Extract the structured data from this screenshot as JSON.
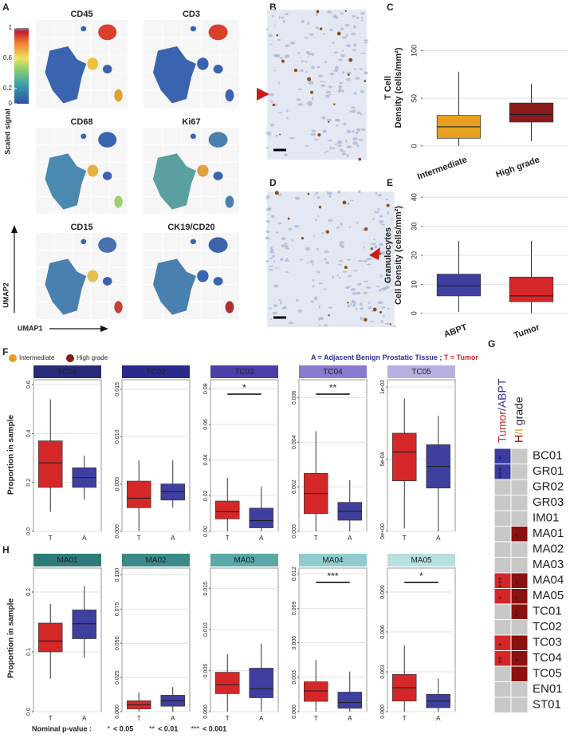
{
  "panel_labels": [
    "A",
    "B",
    "C",
    "D",
    "E",
    "F",
    "G",
    "H"
  ],
  "umap": {
    "markers": [
      "CD45",
      "CD3",
      "CD68",
      "Ki67",
      "CD15",
      "CK19/CD20"
    ],
    "colorbar_title": "Scaled  signal",
    "colorbar_ticks": [
      1,
      0.6,
      0.2,
      0
    ],
    "x_axis": "UMAP1",
    "y_axis": "UMAP2"
  },
  "legend": [
    {
      "name": "Intermediate",
      "color": "#e8a020"
    },
    {
      "name": "High grade",
      "color": "#8b1a1a"
    }
  ],
  "note": [
    {
      "text": "A = Adjacent Benign Prostatic Tissue",
      "color": "#2f2f8f"
    },
    {
      "text": " ; ",
      "color": "#222222"
    },
    {
      "text": "T = Tumor",
      "color": "#d62728"
    }
  ],
  "proportion_label": "Proportion in sample",
  "pvalue_legend": {
    "title": "Nominal p-value :",
    "items": [
      {
        "stars": "*",
        "label": "< 0.05"
      },
      {
        "stars": "**",
        "label": "< 0.01"
      },
      {
        "stars": "***",
        "label": "< 0.001"
      }
    ]
  },
  "chart_data": [
    {
      "type": "box",
      "ylabel": [
        "T Cell",
        "Density (cells/mm²)"
      ],
      "categories": [
        "Intermediate",
        "High grade"
      ],
      "boxes": [
        {
          "color": "#e8a020",
          "min": 0,
          "q1": 8,
          "median": 20,
          "q3": 32,
          "max": 78
        },
        {
          "color": "#8b1a1a",
          "min": 5,
          "q1": 25,
          "median": 33,
          "q3": 45,
          "max": 65
        }
      ],
      "ylim": [
        -6,
        128
      ],
      "yticks": [
        0,
        50,
        100
      ],
      "grid": true
    },
    {
      "type": "box",
      "ylabel": [
        "Granulocytes",
        "Cell Density (cells/mm²)"
      ],
      "categories": [
        "ABPT",
        "Tumor"
      ],
      "boxes": [
        {
          "color": "#3f3fa0",
          "min": 0.5,
          "q1": 6,
          "median": 9.5,
          "q3": 13.5,
          "max": 25
        },
        {
          "color": "#d62728",
          "min": 0,
          "q1": 4,
          "median": 6,
          "q3": 12.5,
          "max": 25
        }
      ],
      "ylim": [
        -2,
        42
      ],
      "yticks": [
        0,
        10,
        20,
        30,
        40
      ],
      "grid": true
    },
    {
      "type": "box",
      "title": "TC01",
      "strip_color": "#2a2a7a",
      "categories": [
        "T",
        "A"
      ],
      "boxes": [
        {
          "color": "#d62728",
          "min": 0.08,
          "q1": 0.18,
          "median": 0.28,
          "q3": 0.37,
          "max": 0.54
        },
        {
          "color": "#3f3fa0",
          "min": 0.13,
          "q1": 0.18,
          "median": 0.22,
          "q3": 0.26,
          "max": 0.31
        }
      ],
      "ylim": [
        0,
        0.62
      ],
      "yticks": [
        {
          "value": 0,
          "label": "0.0"
        },
        0.2,
        0.4,
        0.6
      ],
      "grid": true
    },
    {
      "type": "box",
      "title": "TC02",
      "strip_color": "#2a2a8a",
      "categories": [
        "T",
        "A"
      ],
      "boxes": [
        {
          "color": "#d62728",
          "min": 0,
          "q1": 0.0025,
          "median": 0.0035,
          "q3": 0.0053,
          "max": 0.0075
        },
        {
          "color": "#3f3fa0",
          "min": 0.0025,
          "q1": 0.0033,
          "median": 0.0042,
          "q3": 0.005,
          "max": 0.0075
        }
      ],
      "ylim": [
        0,
        0.016
      ],
      "yticks": [
        {
          "value": 0,
          "label": "0.000"
        },
        {
          "value": 0.005,
          "label": "0.005"
        },
        {
          "value": 0.01,
          "label": "0.010"
        },
        {
          "value": 0.015,
          "label": "0.015"
        }
      ],
      "grid": true
    },
    {
      "type": "box",
      "title": "TC03",
      "strip_color": "#4a40a8",
      "categories": [
        "T",
        "A"
      ],
      "significance": "*",
      "boxes": [
        {
          "color": "#d62728",
          "min": 0,
          "q1": 0.007,
          "median": 0.011,
          "q3": 0.017,
          "max": 0.03
        },
        {
          "color": "#3f3fa0",
          "min": 0,
          "q1": 0.002,
          "median": 0.006,
          "q3": 0.013,
          "max": 0.025
        }
      ],
      "ylim": [
        0,
        0.085
      ],
      "yticks": [
        {
          "value": 0,
          "label": "0.00"
        },
        {
          "value": 0.02,
          "label": "0.02"
        },
        {
          "value": 0.04,
          "label": "0.04"
        },
        {
          "value": 0.06,
          "label": "0.06"
        },
        {
          "value": 0.08,
          "label": "0.08"
        }
      ],
      "grid": true
    },
    {
      "type": "box",
      "title": "TC04",
      "strip_color": "#8a7ad0",
      "categories": [
        "T",
        "A"
      ],
      "significance": "**",
      "boxes": [
        {
          "color": "#d62728",
          "min": 0,
          "q1": 0.0008,
          "median": 0.0017,
          "q3": 0.0026,
          "max": 0.0045
        },
        {
          "color": "#3f3fa0",
          "min": 0,
          "q1": 0.0005,
          "median": 0.0009,
          "q3": 0.0013,
          "max": 0.0023
        }
      ],
      "ylim": [
        0,
        0.0068
      ],
      "yticks": [
        {
          "value": 0,
          "label": "0.000"
        },
        0.002,
        0.004,
        0.006
      ],
      "grid": true
    },
    {
      "type": "box",
      "title": "TC05",
      "strip_color": "#b8b0e0",
      "categories": [
        "T",
        "A"
      ],
      "boxes": [
        {
          "color": "#d62728",
          "min": 2e-05,
          "q1": 0.00035,
          "median": 0.00055,
          "q3": 0.00068,
          "max": 0.00092
        },
        {
          "color": "#3f3fa0",
          "min": 0,
          "q1": 0.0003,
          "median": 0.00045,
          "q3": 0.0006,
          "max": 0.0008
        }
      ],
      "ylim": [
        0,
        0.00105
      ],
      "yticks": [
        {
          "value": 0,
          "label": "0e+00"
        },
        {
          "value": 0.0005,
          "label": "5e-04"
        },
        {
          "value": 0.001,
          "label": "1e-03"
        }
      ],
      "grid": true
    },
    {
      "type": "box",
      "title": "MA01",
      "strip_color": "#2e7a7a",
      "categories": [
        "T",
        "A"
      ],
      "boxes": [
        {
          "color": "#d62728",
          "min": 0.055,
          "q1": 0.1,
          "median": 0.118,
          "q3": 0.148,
          "max": 0.18
        },
        {
          "color": "#3f3fa0",
          "min": 0.09,
          "q1": 0.122,
          "median": 0.147,
          "q3": 0.17,
          "max": 0.21
        }
      ],
      "ylim": [
        0,
        0.24
      ],
      "yticks": [
        {
          "value": 0,
          "label": "0.0"
        },
        0.1,
        0.2
      ],
      "grid": true
    },
    {
      "type": "box",
      "title": "MA02",
      "strip_color": "#3a8a8a",
      "categories": [
        "T",
        "A"
      ],
      "boxes": [
        {
          "color": "#d62728",
          "min": 0,
          "q1": 0.002,
          "median": 0.005,
          "q3": 0.008,
          "max": 0.014
        },
        {
          "color": "#3f3fa0",
          "min": 0,
          "q1": 0.004,
          "median": 0.008,
          "q3": 0.012,
          "max": 0.018
        }
      ],
      "ylim": [
        0,
        0.105
      ],
      "yticks": [
        {
          "value": 0,
          "label": "0.000"
        },
        0.025,
        {
          "value": 0.05,
          "label": "0.050"
        },
        0.075,
        {
          "value": 0.1,
          "label": "0.100"
        }
      ],
      "grid": true
    },
    {
      "type": "box",
      "title": "MA03",
      "strip_color": "#5aa8a8",
      "categories": [
        "T",
        "A"
      ],
      "boxes": [
        {
          "color": "#d62728",
          "min": 0,
          "q1": 0.0022,
          "median": 0.0033,
          "q3": 0.0048,
          "max": 0.007
        },
        {
          "color": "#3f3fa0",
          "min": 0,
          "q1": 0.0017,
          "median": 0.0028,
          "q3": 0.0053,
          "max": 0.0083
        }
      ],
      "ylim": [
        0,
        0.0175
      ],
      "yticks": [
        {
          "value": 0,
          "label": "0.000"
        },
        0.005,
        {
          "value": 0.01,
          "label": "0.010"
        },
        0.015
      ],
      "grid": true
    },
    {
      "type": "box",
      "title": "MA04",
      "strip_color": "#90cccc",
      "categories": [
        "T",
        "A"
      ],
      "significance": "***",
      "boxes": [
        {
          "color": "#d62728",
          "min": 0,
          "q1": 0.0009,
          "median": 0.0018,
          "q3": 0.0026,
          "max": 0.0045
        },
        {
          "color": "#3f3fa0",
          "min": 0,
          "q1": 0.0003,
          "median": 0.0008,
          "q3": 0.0017,
          "max": 0.0035
        }
      ],
      "ylim": [
        0,
        0.0125
      ],
      "yticks": [
        {
          "value": 0,
          "label": "0.000"
        },
        0.003,
        0.006,
        0.009,
        0.012
      ],
      "grid": true
    },
    {
      "type": "box",
      "title": "MA05",
      "strip_color": "#b8e0e0",
      "categories": [
        "T",
        "A"
      ],
      "significance": "*",
      "boxes": [
        {
          "color": "#d62728",
          "min": 0,
          "q1": 0.0008,
          "median": 0.0018,
          "q3": 0.0028,
          "max": 0.005
        },
        {
          "color": "#3f3fa0",
          "min": 0,
          "q1": 0.0003,
          "median": 0.0008,
          "q3": 0.0013,
          "max": 0.0025
        }
      ],
      "ylim": [
        0,
        0.0108
      ],
      "yticks": [
        {
          "value": 0,
          "label": "0.000"
        },
        0.003,
        0.006,
        0.009
      ],
      "grid": true
    }
  ],
  "heatmap": {
    "columns": [
      [
        {
          "text": "Tumor",
          "color": "#c0282d"
        },
        {
          "text": "/ABPT",
          "color": "#3a3a9a"
        }
      ],
      [
        {
          "text": "H",
          "color": "#8b1010"
        },
        {
          "text": "/I",
          "color": "#e8a020"
        },
        {
          "text": " grade",
          "color": "#222222"
        }
      ]
    ],
    "rows": [
      {
        "label": "BC01",
        "color": "#2a2a7a",
        "cells": [
          {
            "fill": "#3b3ba0",
            "stars": "*"
          },
          {
            "fill": "#c8c8c8",
            "stars": null
          }
        ]
      },
      {
        "label": "GR01",
        "color": "#8dc63f",
        "cells": [
          {
            "fill": "#3b3ba0",
            "stars": "***"
          },
          {
            "fill": "#c8c8c8",
            "stars": null
          }
        ]
      },
      {
        "label": "GR02",
        "color": "#6aab3a",
        "cells": [
          {
            "fill": "#c8c8c8",
            "stars": null
          },
          {
            "fill": "#c8c8c8",
            "stars": null
          }
        ]
      },
      {
        "label": "GR03",
        "color": "#3e7d2a",
        "cells": [
          {
            "fill": "#c8c8c8",
            "stars": null
          },
          {
            "fill": "#c8c8c8",
            "stars": null
          }
        ]
      },
      {
        "label": "IM01",
        "color": "#555555",
        "cells": [
          {
            "fill": "#c8c8c8",
            "stars": null
          },
          {
            "fill": "#c8c8c8",
            "stars": null
          }
        ]
      },
      {
        "label": "MA01",
        "color": "#2e6b6b",
        "cells": [
          {
            "fill": "#c8c8c8",
            "stars": null
          },
          {
            "fill": "#8b1010",
            "stars": "*"
          }
        ]
      },
      {
        "label": "MA02",
        "color": "#3a8a8a",
        "cells": [
          {
            "fill": "#c8c8c8",
            "stars": null
          },
          {
            "fill": "#c8c8c8",
            "stars": null
          }
        ]
      },
      {
        "label": "MA03",
        "color": "#4aa0a0",
        "cells": [
          {
            "fill": "#c8c8c8",
            "stars": null
          },
          {
            "fill": "#c8c8c8",
            "stars": null
          }
        ]
      },
      {
        "label": "MA04",
        "color": "#70bcbc",
        "cells": [
          {
            "fill": "#d62728",
            "stars": "***"
          },
          {
            "fill": "#8b1010",
            "stars": "*"
          }
        ]
      },
      {
        "label": "MA05",
        "color": "#a8d8d8",
        "cells": [
          {
            "fill": "#d62728",
            "stars": "*"
          },
          {
            "fill": "#8b1010",
            "stars": "*"
          }
        ]
      },
      {
        "label": "TC01",
        "color": "#1a1a6e",
        "cells": [
          {
            "fill": "#c8c8c8",
            "stars": null
          },
          {
            "fill": "#8b1010",
            "stars": "**"
          }
        ]
      },
      {
        "label": "TC02",
        "color": "#2a2a8a",
        "cells": [
          {
            "fill": "#c8c8c8",
            "stars": null
          },
          {
            "fill": "#c8c8c8",
            "stars": null
          }
        ]
      },
      {
        "label": "TC03",
        "color": "#4040a0",
        "cells": [
          {
            "fill": "#d62728",
            "stars": "*"
          },
          {
            "fill": "#8b1010",
            "stars": null
          }
        ]
      },
      {
        "label": "TC04",
        "color": "#7060c0",
        "cells": [
          {
            "fill": "#d62728",
            "stars": "**"
          },
          {
            "fill": "#8b1010",
            "stars": "*"
          }
        ]
      },
      {
        "label": "TC05",
        "color": "#a0a0d8",
        "cells": [
          {
            "fill": "#c8c8c8",
            "stars": null
          },
          {
            "fill": "#8b1010",
            "stars": null
          }
        ]
      },
      {
        "label": "EN01",
        "color": "#7a7a10",
        "cells": [
          {
            "fill": "#c8c8c8",
            "stars": null
          },
          {
            "fill": "#c8c8c8",
            "stars": null
          }
        ]
      },
      {
        "label": "ST01",
        "color": "#d4aa20",
        "cells": [
          {
            "fill": "#c8c8c8",
            "stars": null
          },
          {
            "fill": "#c8c8c8",
            "stars": null
          }
        ]
      }
    ]
  }
}
